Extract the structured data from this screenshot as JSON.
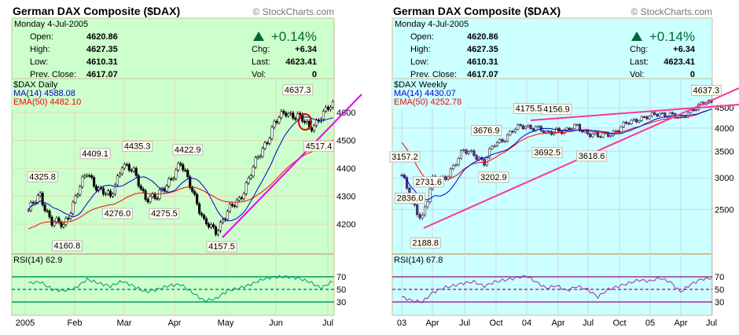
{
  "chart_data": [
    {
      "type": "candlestick",
      "title": "German DAX Composite ($DAX)",
      "copyright": "© StockCharts.com",
      "date": "Monday  4-Jul-2005",
      "quote": {
        "open_label": "Open:",
        "open": "4620.86",
        "high_label": "High:",
        "high": "4627.35",
        "low_label": "Low:",
        "low": "4610.31",
        "prev_label": "Prev. Close:",
        "prev": "4617.07",
        "change_pct": "+0.14%",
        "chg_label": "Chg:",
        "chg": "+6.34",
        "last_label": "Last:",
        "last": "4623.41",
        "vol_label": "Vol:",
        "vol": "0"
      },
      "series_label": "$DAX Daily",
      "ma_label": "MA(14) 4588.08",
      "ema_label": "EMA(50) 4482.10",
      "rsi_label": "RSI(14) 62.9",
      "x_ticks": [
        "2005",
        "Feb",
        "Mar",
        "Apr",
        "May",
        "Jun",
        "Jul"
      ],
      "y_ticks": [
        4200,
        4300,
        4400,
        4500,
        4600
      ],
      "rsi_ticks": [
        30,
        50,
        70
      ],
      "weekly_closes_approx": [
        4250,
        4300,
        4210,
        4190,
        4300,
        4380,
        4330,
        4290,
        4420,
        4380,
        4300,
        4290,
        4360,
        4410,
        4330,
        4200,
        4180,
        4240,
        4290,
        4380,
        4470,
        4560,
        4600,
        4590,
        4540,
        4590,
        4623
      ],
      "rsi_approx": [
        60,
        62,
        50,
        48,
        52,
        66,
        60,
        55,
        63,
        55,
        46,
        50,
        56,
        58,
        45,
        32,
        35,
        48,
        52,
        58,
        66,
        70,
        70,
        68,
        62,
        52,
        62.9
      ],
      "annotations": [
        {
          "label": "4325.8",
          "week": 1.2,
          "value": 4325.8,
          "pos": "above"
        },
        {
          "label": "4160.8",
          "week": 3.3,
          "value": 4160.8,
          "pos": "below"
        },
        {
          "label": "4409.1",
          "week": 5.7,
          "value": 4409.1,
          "pos": "above"
        },
        {
          "label": "4276.0",
          "week": 7.6,
          "value": 4276.0,
          "pos": "below"
        },
        {
          "label": "4435.3",
          "week": 9.3,
          "value": 4435.3,
          "pos": "above"
        },
        {
          "label": "4275.5",
          "week": 11.6,
          "value": 4275.5,
          "pos": "below"
        },
        {
          "label": "4422.9",
          "week": 13.6,
          "value": 4422.9,
          "pos": "above"
        },
        {
          "label": "4157.5",
          "week": 16.5,
          "value": 4157.5,
          "pos": "below"
        },
        {
          "label": "4637.3",
          "week": 23.0,
          "value": 4637.3,
          "pos": "above"
        },
        {
          "label": "4517.4",
          "week": 24.8,
          "value": 4517.4,
          "pos": "below"
        }
      ],
      "bg_color": "#ccffcc",
      "rsi_color": "#009966"
    },
    {
      "type": "candlestick",
      "title": "German DAX Composite ($DAX)",
      "copyright": "© StockCharts.com",
      "date": "Monday  4-Jul-2005",
      "quote": {
        "open_label": "Open:",
        "open": "4620.86",
        "high_label": "High:",
        "high": "4627.35",
        "low_label": "Low:",
        "low": "4610.31",
        "prev_label": "Prev. Close:",
        "prev": "4617.07",
        "change_pct": "+0.14%",
        "chg_label": "Chg:",
        "chg": "+6.34",
        "last_label": "Last:",
        "last": "4623.41",
        "vol_label": "Vol:",
        "vol": "0"
      },
      "series_label": "$DAX Weekly",
      "ma_label": "MA(14) 4430.07",
      "ema_label": "EMA(50) 4252.78",
      "rsi_label": "RSI(14) 67.8",
      "x_ticks": [
        "03",
        "Apr",
        "Jul",
        "Oct",
        "04",
        "Apr",
        "Jul",
        "Oct",
        "05",
        "Apr",
        "Jul"
      ],
      "y_ticks": [
        2500,
        3000,
        3500,
        4000,
        4500
      ],
      "rsi_ticks": [
        30,
        50,
        70
      ],
      "y_scale": "log",
      "monthly_closes_approx": [
        3050,
        2550,
        2420,
        2940,
        2980,
        3220,
        3480,
        3480,
        3260,
        3650,
        3800,
        3965,
        4060,
        4020,
        3850,
        3985,
        3920,
        4050,
        3895,
        3785,
        3890,
        3960,
        4125,
        4255,
        4255,
        4350,
        4350,
        4185,
        4460,
        4586,
        4623
      ],
      "rsi_approx": [
        38,
        32,
        30,
        45,
        52,
        56,
        60,
        62,
        55,
        62,
        65,
        68,
        72,
        62,
        52,
        56,
        48,
        55,
        50,
        38,
        50,
        55,
        60,
        65,
        63,
        68,
        62,
        46,
        58,
        66,
        67.8
      ],
      "annotations": [
        {
          "label": "3157.2",
          "month": 0.3,
          "value": 3157.2,
          "pos": "above"
        },
        {
          "label": "2836.0",
          "month": 0.8,
          "value": 2836.0,
          "pos": "below"
        },
        {
          "label": "2731.6",
          "month": 2.6,
          "value": 2731.6,
          "pos": "above"
        },
        {
          "label": "2188.8",
          "month": 2.3,
          "value": 2188.8,
          "pos": "below"
        },
        {
          "label": "3676.9",
          "month": 8.2,
          "value": 3676.9,
          "pos": "above"
        },
        {
          "label": "3202.9",
          "month": 8.9,
          "value": 3202.9,
          "pos": "below"
        },
        {
          "label": "4175.5",
          "month": 12.3,
          "value": 4175.5,
          "pos": "above"
        },
        {
          "label": "4156.9",
          "month": 15.0,
          "value": 4156.9,
          "pos": "above"
        },
        {
          "label": "3692.5",
          "month": 14.1,
          "value": 3692.5,
          "pos": "below"
        },
        {
          "label": "3618.6",
          "month": 18.4,
          "value": 3618.6,
          "pos": "below"
        },
        {
          "label": "4637.3",
          "month": 29.5,
          "value": 4637.3,
          "pos": "above"
        }
      ],
      "bg_color": "#ccffff",
      "rsi_color": "#993399"
    }
  ]
}
